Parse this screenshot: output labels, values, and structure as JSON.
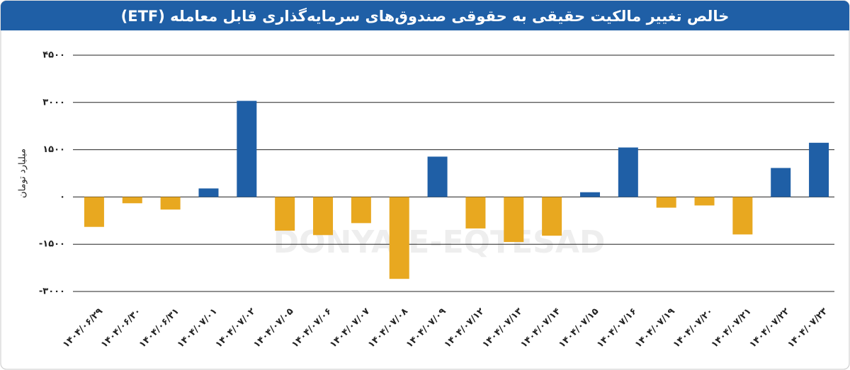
{
  "chart_data": {
    "type": "bar",
    "title": "خالص تغییر مالکیت حقیقی به حقوقی صندوق‌های سرمایه‌گذاری قابل معامله (ETF)",
    "y_label": "میلیارد تومان",
    "watermark": "DONYA-E-EQTESAD",
    "categories": [
      "۱۴۰۴/۰۶/۲۹",
      "۱۴۰۴/۰۶/۳۰",
      "۱۴۰۴/۰۶/۳۱",
      "۱۴۰۴/۰۷/۰۱",
      "۱۴۰۴/۰۷/۰۲",
      "۱۴۰۴/۰۷/۰۵",
      "۱۴۰۴/۰۷/۰۶",
      "۱۴۰۴/۰۷/۰۷",
      "۱۴۰۴/۰۷/۰۸",
      "۱۴۰۴/۰۷/۰۹",
      "۱۴۰۴/۰۷/۱۲",
      "۱۴۰۴/۰۷/۱۳",
      "۱۴۰۴/۰۷/۱۴",
      "۱۴۰۴/۰۷/۱۵",
      "۱۴۰۴/۰۷/۱۶",
      "۱۴۰۴/۰۷/۱۹",
      "۱۴۰۴/۰۷/۲۰",
      "۱۴۰۴/۰۷/۲۱",
      "۱۴۰۴/۰۷/۲۲",
      "۱۴۰۴/۰۷/۲۳"
    ],
    "values": [
      -950,
      -200,
      -400,
      270,
      3050,
      -1070,
      -1210,
      -830,
      -2600,
      1280,
      -1000,
      -1430,
      -1230,
      150,
      1570,
      -340,
      -270,
      -1190,
      920,
      1720
    ],
    "positive_color": "#1f5fa6",
    "negative_color": "#e8a820",
    "ylim": [
      -3000,
      4500
    ],
    "yticks": [
      {
        "value": 4500,
        "label": "۴۵۰۰"
      },
      {
        "value": 3000,
        "label": "۳۰۰۰"
      },
      {
        "value": 1500,
        "label": "۱۵۰۰"
      },
      {
        "value": 0,
        "label": "۰"
      },
      {
        "value": -1500,
        "label": "-۱۵۰۰"
      },
      {
        "value": -3000,
        "label": "-۳۰۰۰"
      }
    ],
    "grid": true
  }
}
